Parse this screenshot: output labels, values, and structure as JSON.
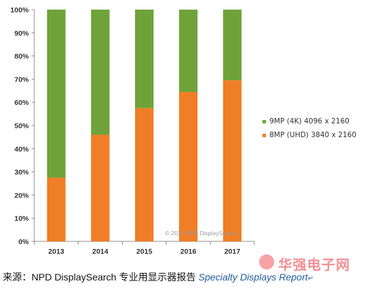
{
  "chart_data": {
    "type": "bar",
    "stacked": true,
    "categories": [
      "2013",
      "2014",
      "2015",
      "2016",
      "2017"
    ],
    "series": [
      {
        "name": "8MP (UHD) 3840 x 2160",
        "color": "#f07e26",
        "values": [
          27.5,
          46,
          57.5,
          64.5,
          69.5
        ]
      },
      {
        "name": "9MP (4K) 4096 x 2160",
        "color": "#6fa33a",
        "values": [
          72.5,
          54,
          42.5,
          35.5,
          30.5
        ]
      }
    ],
    "legend_order": [
      "9MP (4K) 4096 x 2160",
      "8MP (UHD) 3840 x 2160"
    ],
    "legend_position": "right",
    "ylim": [
      0,
      100
    ],
    "yticks": [
      "0%",
      "10%",
      "20%",
      "30%",
      "40%",
      "50%",
      "60%",
      "70%",
      "80%",
      "90%",
      "100%"
    ],
    "grid": false,
    "xlabel": "",
    "ylabel": "",
    "annotation": "© 2014 NPD DisplaySearch"
  },
  "caption": {
    "prefix": "来源：NPD DisplaySearch 专业用显示器报告 ",
    "report": "Specialty Displays Report",
    "report_icon": "↵"
  },
  "watermark": {
    "text": "华强电子网"
  }
}
